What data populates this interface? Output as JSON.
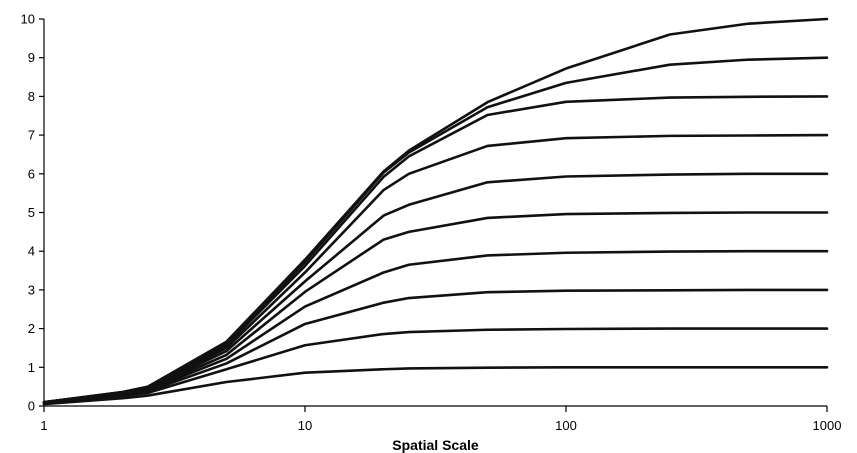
{
  "chart_data": {
    "type": "line",
    "title": "",
    "xlabel": "Spatial Scale",
    "ylabel": "",
    "x_scale": "log",
    "xlim": [
      1,
      1000
    ],
    "ylim": [
      0,
      10
    ],
    "x_ticks": [
      "1",
      "10",
      "100",
      "1000"
    ],
    "y_ticks": [
      "0",
      "1",
      "2",
      "3",
      "4",
      "5",
      "6",
      "7",
      "8",
      "9",
      "10"
    ],
    "grid": false,
    "legend": "none",
    "line_color": "#111111",
    "x": [
      1,
      2,
      2.5,
      5,
      10,
      20,
      25,
      50,
      100,
      250,
      500,
      1000
    ],
    "series": [
      {
        "values": [
          0.05,
          0.2,
          0.27,
          0.62,
          0.86,
          0.95,
          0.97,
          0.99,
          1.0,
          1.0,
          1.0,
          1.0
        ]
      },
      {
        "values": [
          0.06,
          0.26,
          0.34,
          0.95,
          1.57,
          1.86,
          1.91,
          1.97,
          1.99,
          2.0,
          2.0,
          2.0
        ]
      },
      {
        "values": [
          0.07,
          0.29,
          0.38,
          1.1,
          2.12,
          2.67,
          2.79,
          2.94,
          2.98,
          2.99,
          3.0,
          3.0
        ]
      },
      {
        "values": [
          0.08,
          0.31,
          0.41,
          1.22,
          2.57,
          3.45,
          3.65,
          3.89,
          3.96,
          3.99,
          4.0,
          4.0
        ]
      },
      {
        "values": [
          0.08,
          0.32,
          0.43,
          1.32,
          2.95,
          4.3,
          4.5,
          4.86,
          4.96,
          4.99,
          5.0,
          5.0
        ]
      },
      {
        "values": [
          0.09,
          0.33,
          0.45,
          1.42,
          3.22,
          4.92,
          5.2,
          5.78,
          5.93,
          5.98,
          6.0,
          6.0
        ]
      },
      {
        "values": [
          0.09,
          0.34,
          0.47,
          1.5,
          3.45,
          5.58,
          6.0,
          6.72,
          6.92,
          6.98,
          6.99,
          7.0
        ]
      },
      {
        "values": [
          0.1,
          0.35,
          0.48,
          1.57,
          3.62,
          5.92,
          6.45,
          7.52,
          7.86,
          7.97,
          7.99,
          8.0
        ]
      },
      {
        "values": [
          0.1,
          0.36,
          0.49,
          1.62,
          3.72,
          6.03,
          6.55,
          7.72,
          8.35,
          8.82,
          8.95,
          9.0
        ]
      },
      {
        "values": [
          0.1,
          0.36,
          0.5,
          1.66,
          3.78,
          6.06,
          6.6,
          7.85,
          8.72,
          9.6,
          9.88,
          10.0
        ]
      }
    ]
  }
}
